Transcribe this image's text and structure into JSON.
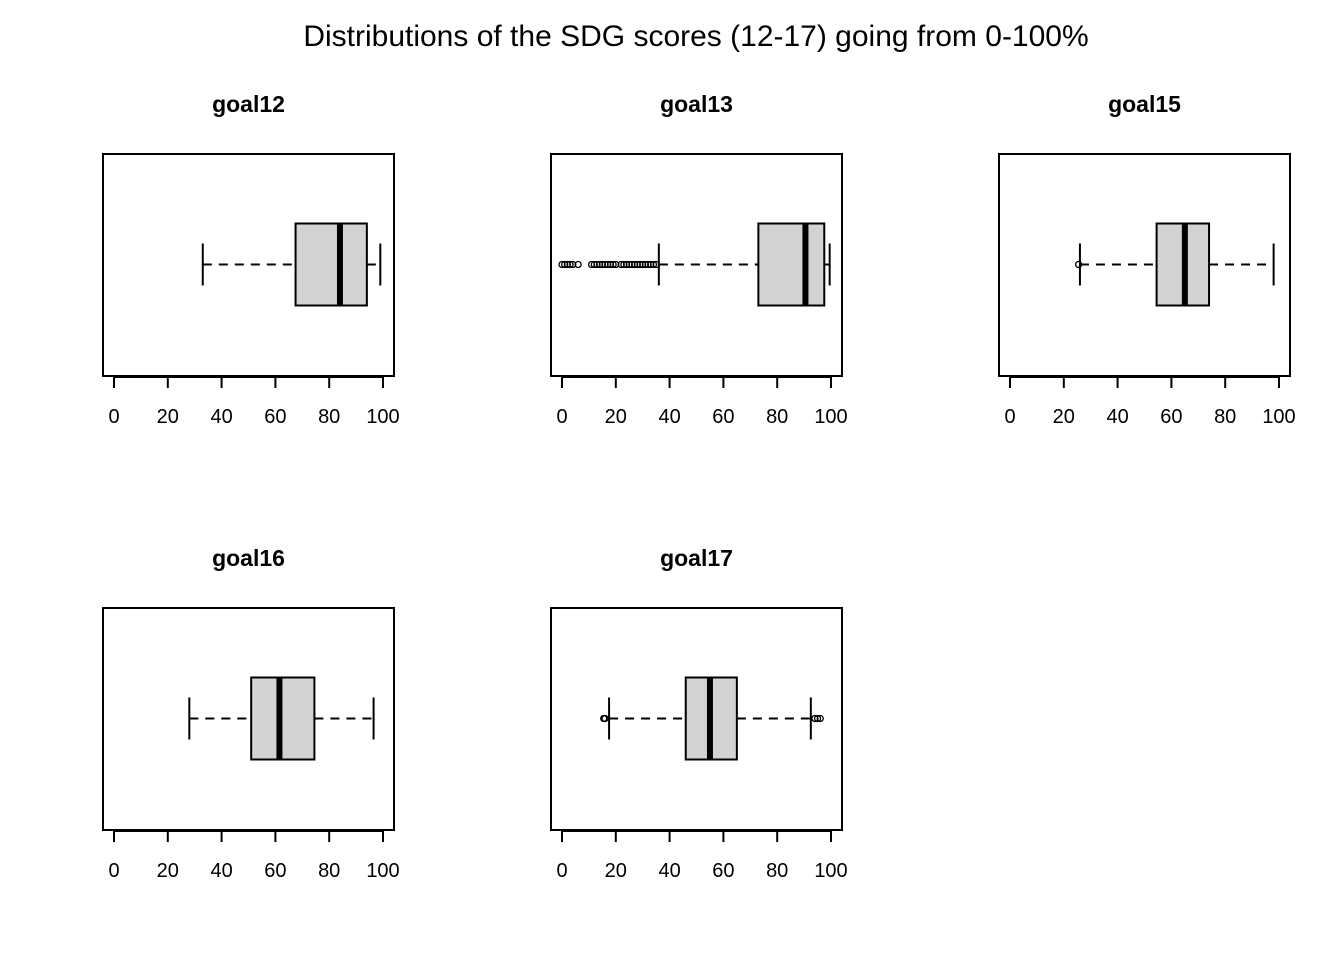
{
  "title": "Distributions of the SDG scores (12-17) going from 0-100%",
  "chart_data": [
    {
      "type": "boxplot",
      "orientation": "horizontal",
      "title": "goal12",
      "xlim": [
        0,
        100
      ],
      "ticks": [
        0,
        20,
        40,
        60,
        80,
        100
      ],
      "whisker_low": 33,
      "q1": 67.5,
      "median": 84,
      "q3": 94,
      "whisker_high": 99,
      "outliers": []
    },
    {
      "type": "boxplot",
      "orientation": "horizontal",
      "title": "goal13",
      "xlim": [
        0,
        100
      ],
      "ticks": [
        0,
        20,
        40,
        60,
        80,
        100
      ],
      "whisker_low": 36,
      "q1": 73,
      "median": 90.5,
      "q3": 97.5,
      "whisker_high": 99.5,
      "outliers": [
        0,
        1,
        2,
        3,
        4,
        6,
        11,
        12,
        13,
        14,
        15,
        16,
        17,
        18,
        19,
        20,
        22,
        23,
        24,
        25,
        26,
        27,
        28,
        29,
        30,
        31,
        32,
        33,
        34,
        35
      ]
    },
    {
      "type": "boxplot",
      "orientation": "horizontal",
      "title": "goal15",
      "xlim": [
        0,
        100
      ],
      "ticks": [
        0,
        20,
        40,
        60,
        80,
        100
      ],
      "whisker_low": 26,
      "q1": 54.5,
      "median": 65,
      "q3": 74,
      "whisker_high": 98,
      "outliers": [
        25.5
      ]
    },
    {
      "type": "boxplot",
      "orientation": "horizontal",
      "title": "goal16",
      "xlim": [
        0,
        100
      ],
      "ticks": [
        0,
        20,
        40,
        60,
        80,
        100
      ],
      "whisker_low": 28,
      "q1": 51,
      "median": 61.5,
      "q3": 74.5,
      "whisker_high": 96.5,
      "outliers": []
    },
    {
      "type": "boxplot",
      "orientation": "horizontal",
      "title": "goal17",
      "xlim": [
        0,
        100
      ],
      "ticks": [
        0,
        20,
        40,
        60,
        80,
        100
      ],
      "whisker_low": 17.5,
      "q1": 46,
      "median": 55,
      "q3": 65,
      "whisker_high": 92.5,
      "outliers": [
        15.5,
        16,
        94,
        95,
        96
      ]
    }
  ],
  "colors": {
    "box_fill": "#d3d3d3",
    "stroke": "#000000",
    "background": "#ffffff"
  }
}
